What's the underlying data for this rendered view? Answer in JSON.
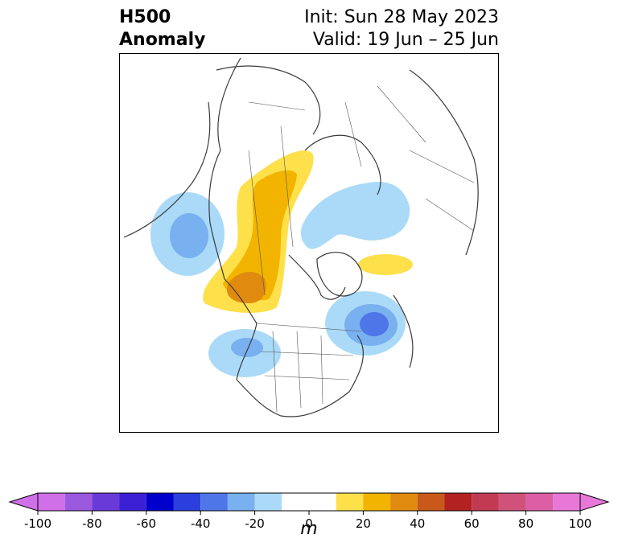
{
  "header": {
    "title_line1": "H500",
    "title_line2": "Anomaly",
    "init_line": "Init: Sun 28 May 2023",
    "valid_line": "Valid: 19 Jun – 25 Jun"
  },
  "colorbar": {
    "unit": "m",
    "ticks": [
      -100,
      -80,
      -60,
      -40,
      -20,
      0,
      20,
      40,
      60,
      80,
      100
    ],
    "bins": [
      -100,
      -90,
      -80,
      -70,
      -60,
      -50,
      -40,
      -30,
      -20,
      -10,
      10,
      20,
      30,
      40,
      50,
      60,
      70,
      80,
      90,
      100
    ],
    "colors": [
      "#d070e8",
      "#9b59e0",
      "#6a3ad8",
      "#3b1fd4",
      "#0000cc",
      "#2a3fdb",
      "#4f76e8",
      "#79b0f0",
      "#aadaf8",
      "#ffffff",
      "#fde04a",
      "#f2b400",
      "#e08a10",
      "#c9591a",
      "#b22222",
      "#c23a52",
      "#d0527a",
      "#dc5fa6",
      "#e878d8"
    ],
    "extend_low": "#d070e8",
    "extend_high": "#e878d8"
  }
}
